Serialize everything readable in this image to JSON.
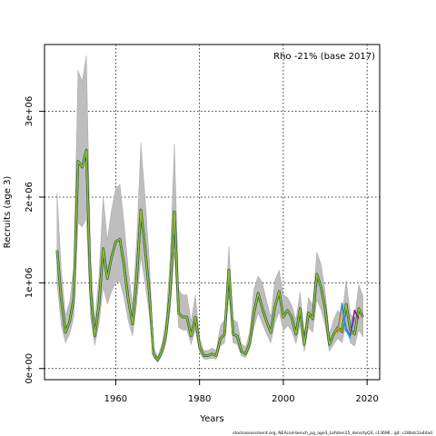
{
  "chart_data": {
    "type": "line",
    "title": "",
    "xlabel": "Years",
    "ylabel": "Recruits (age 3)",
    "xlim": [
      1943,
      2023
    ],
    "ylim": [
      -130000,
      3780000
    ],
    "x_ticks": [
      1960,
      1980,
      2000,
      2020
    ],
    "x_tick_labels": [
      "1960",
      "1980",
      "2000",
      "2020"
    ],
    "y_ticks": [
      0,
      1000000,
      2000000,
      3000000
    ],
    "y_tick_labels": [
      "0e+00",
      "1e+06",
      "2e+06",
      "3e+06"
    ],
    "grid": true,
    "annotation": "Rho -21% (base 2017)",
    "footer": "stockassessment.org,  NEAcod-bench_pg_age3_Lofoten15_densityQ3,  r13696 ,  git:  c28bdc2a44ad",
    "colors": {
      "ci_band": "#bebebe",
      "base": "#000000",
      "peels": [
        "#2e8b57",
        "#4169e1",
        "#20b2aa",
        "#6b8e23",
        "#9acd32",
        "#1e90ff",
        "#8b008b",
        "#ff8c00"
      ]
    },
    "years": [
      1946,
      1947,
      1948,
      1949,
      1950,
      1951,
      1952,
      1953,
      1954,
      1955,
      1956,
      1957,
      1958,
      1959,
      1960,
      1961,
      1962,
      1963,
      1964,
      1965,
      1966,
      1967,
      1968,
      1969,
      1970,
      1971,
      1972,
      1973,
      1974,
      1975,
      1976,
      1977,
      1978,
      1979,
      1980,
      1981,
      1982,
      1983,
      1984,
      1985,
      1986,
      1987,
      1988,
      1989,
      1990,
      1991,
      1992,
      1993,
      1994,
      1995,
      1996,
      1997,
      1998,
      1999,
      2000,
      2001,
      2002,
      2003,
      2004,
      2005,
      2006,
      2007,
      2008,
      2009,
      2010,
      2011,
      2012,
      2013,
      2014,
      2015,
      2016,
      2017,
      2018,
      2019
    ],
    "estimate": [
      1380000,
      800000,
      420000,
      550000,
      830000,
      2420000,
      2350000,
      2550000,
      900000,
      380000,
      750000,
      1400000,
      1050000,
      1300000,
      1480000,
      1510000,
      1200000,
      800000,
      520000,
      1050000,
      1850000,
      1400000,
      900000,
      170000,
      100000,
      200000,
      400000,
      900000,
      1830000,
      650000,
      600000,
      600000,
      380000,
      600000,
      250000,
      150000,
      150000,
      170000,
      150000,
      350000,
      400000,
      1150000,
      400000,
      380000,
      200000,
      170000,
      300000,
      650000,
      880000,
      700000,
      550000,
      420000,
      720000,
      900000,
      600000,
      680000,
      600000,
      400000,
      700000,
      280000,
      650000,
      580000,
      1100000,
      950000,
      700000,
      280000,
      400000,
      480000,
      430000,
      750000,
      450000,
      400000,
      700000,
      600000
    ],
    "lower": [
      1000000,
      500000,
      300000,
      400000,
      600000,
      1700000,
      1650000,
      1750000,
      600000,
      270000,
      520000,
      950000,
      750000,
      900000,
      1000000,
      1020000,
      820000,
      550000,
      380000,
      750000,
      1300000,
      1000000,
      640000,
      130000,
      70000,
      150000,
      300000,
      680000,
      1350000,
      480000,
      450000,
      450000,
      280000,
      450000,
      190000,
      110000,
      110000,
      120000,
      110000,
      260000,
      300000,
      850000,
      300000,
      280000,
      150000,
      130000,
      230000,
      480000,
      650000,
      520000,
      400000,
      300000,
      530000,
      660000,
      440000,
      500000,
      440000,
      290000,
      510000,
      200000,
      480000,
      420000,
      800000,
      690000,
      500000,
      200000,
      280000,
      350000,
      300000,
      520000,
      300000,
      260000,
      450000,
      370000
    ],
    "upper": [
      2050000,
      1150000,
      620000,
      780000,
      1200000,
      3480000,
      3350000,
      3650000,
      1300000,
      550000,
      1080000,
      2000000,
      1500000,
      1850000,
      2100000,
      2150000,
      1700000,
      1150000,
      750000,
      1500000,
      2630000,
      2000000,
      1280000,
      250000,
      140000,
      280000,
      580000,
      1300000,
      2620000,
      920000,
      860000,
      860000,
      550000,
      860000,
      360000,
      210000,
      210000,
      240000,
      210000,
      500000,
      570000,
      1420000,
      570000,
      540000,
      290000,
      250000,
      430000,
      930000,
      1080000,
      1000000,
      790000,
      600000,
      1030000,
      1150000,
      860000,
      830000,
      740000,
      570000,
      890000,
      400000,
      830000,
      740000,
      1360000,
      1220000,
      900000,
      400000,
      570000,
      680000,
      610000,
      1030000,
      640000,
      570000,
      980000,
      850000
    ],
    "peels": [
      {
        "start_year": 2013,
        "end_year": 2018,
        "values": [
          430000,
          750000,
          450000,
          390000,
          680000,
          580000
        ]
      },
      {
        "start_year": 2013,
        "end_year": 2017,
        "values": [
          440000,
          760000,
          470000,
          380000,
          600000
        ]
      },
      {
        "start_year": 2013,
        "end_year": 2016,
        "values": [
          450000,
          740000,
          440000,
          350000
        ]
      },
      {
        "start_year": 2013,
        "end_year": 2015,
        "values": [
          420000,
          720000,
          430000
        ]
      },
      {
        "start_year": 2013,
        "end_year": 2014,
        "values": [
          410000,
          690000
        ]
      }
    ]
  }
}
